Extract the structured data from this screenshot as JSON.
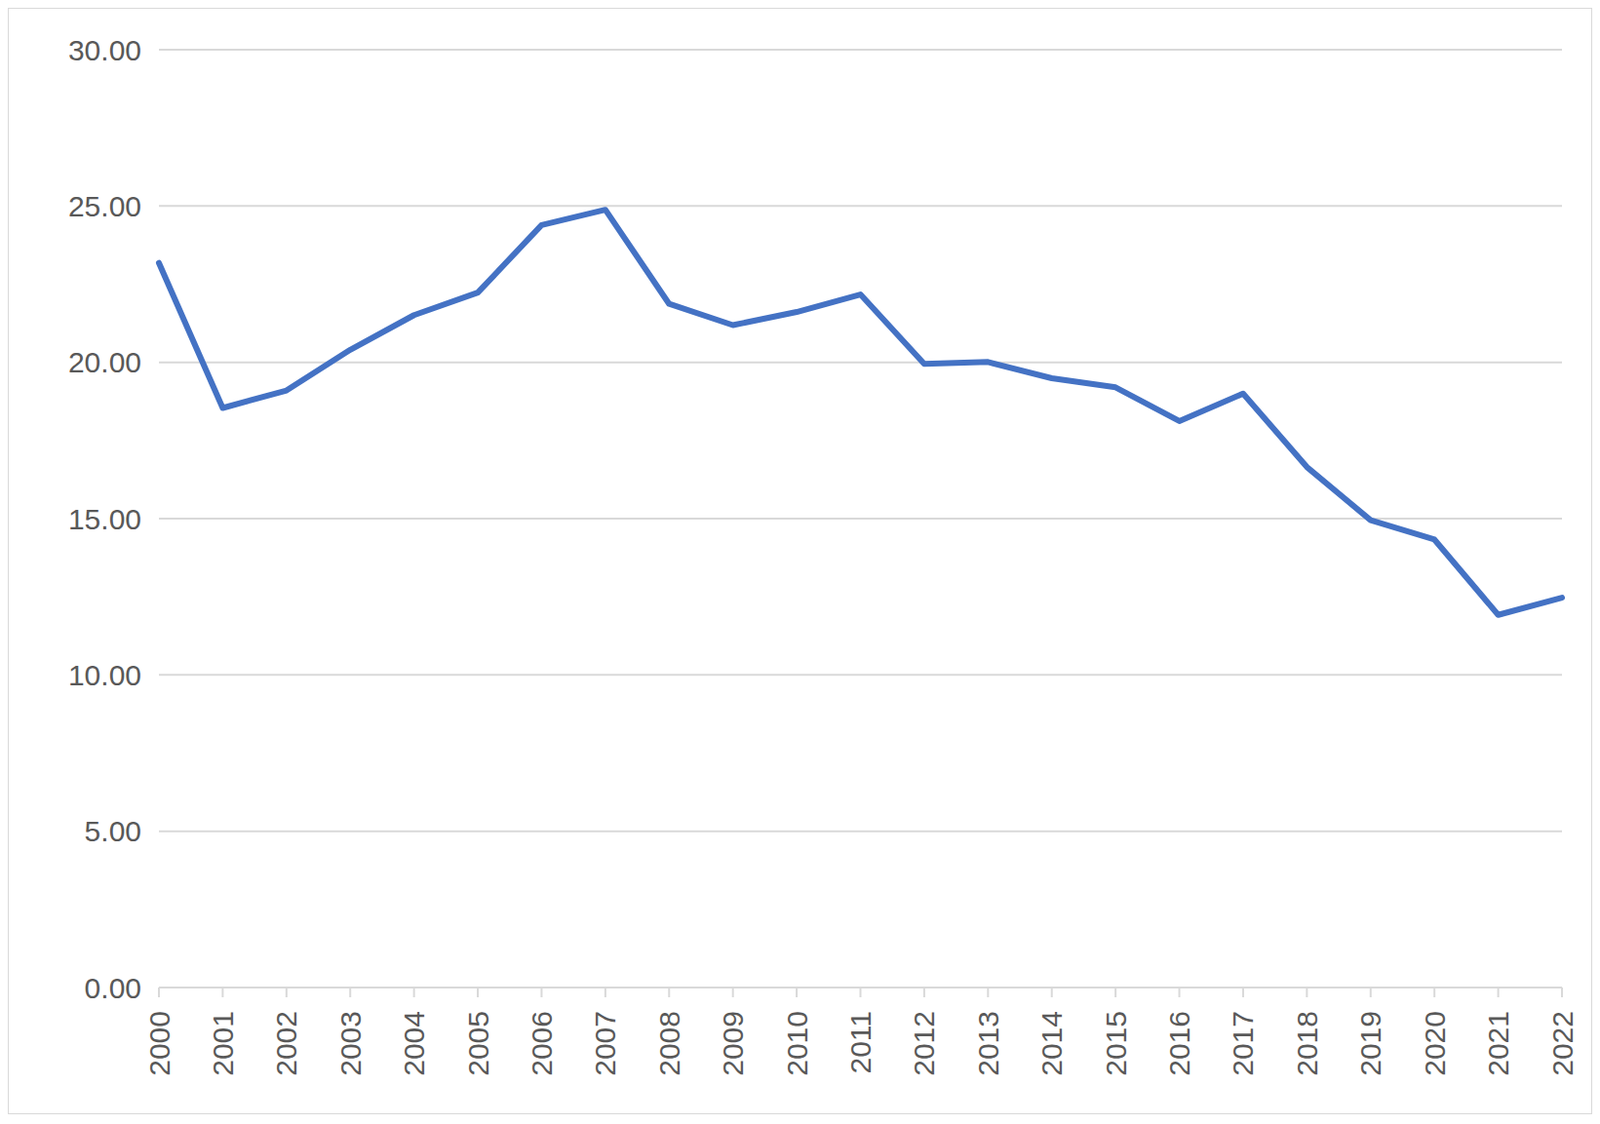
{
  "chart_data": {
    "type": "line",
    "categories": [
      "2000",
      "2001",
      "2002",
      "2003",
      "2004",
      "2005",
      "2006",
      "2007",
      "2008",
      "2009",
      "2010",
      "2011",
      "2012",
      "2013",
      "2014",
      "2015",
      "2016",
      "2017",
      "2018",
      "2019",
      "2020",
      "2021",
      "2022"
    ],
    "values": [
      23.18,
      18.54,
      19.1,
      20.4,
      21.51,
      22.23,
      24.39,
      24.88,
      21.87,
      21.19,
      21.61,
      22.17,
      19.95,
      20.01,
      19.49,
      19.2,
      18.12,
      19.0,
      16.65,
      14.95,
      14.33,
      11.92,
      12.47
    ],
    "color": "#4472c4",
    "ylim": [
      0,
      30
    ],
    "yticks": [
      {
        "value": 0,
        "label": "0.00"
      },
      {
        "value": 5,
        "label": "5.00"
      },
      {
        "value": 10,
        "label": "10.00"
      },
      {
        "value": 15,
        "label": "15.00"
      },
      {
        "value": 20,
        "label": "20.00"
      },
      {
        "value": 25,
        "label": "25.00"
      },
      {
        "value": 30,
        "label": "30.00"
      }
    ],
    "grid": true
  }
}
